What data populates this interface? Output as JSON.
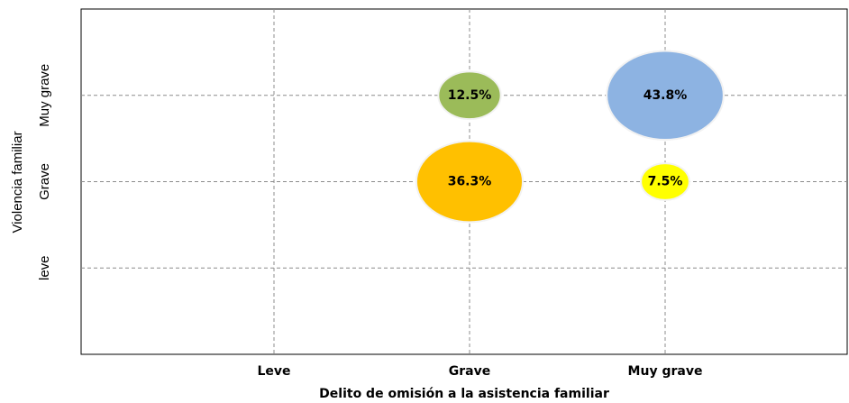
{
  "chart_data": {
    "type": "bubble",
    "x_label": "Delito de omisión a la asistencia familiar",
    "y_label": "Violencia familiar",
    "x_categories": [
      "Leve",
      "Grave",
      "Muy grave"
    ],
    "y_categories": [
      "leve",
      "Grave",
      "Muy grave"
    ],
    "x": [
      "Grave",
      "Muy grave",
      "Grave",
      "Muy grave"
    ],
    "y": [
      "Muy grave",
      "Muy grave",
      "Grave",
      "Grave"
    ],
    "values": [
      12.5,
      43.8,
      36.3,
      7.5
    ],
    "value_labels": [
      "12.5%",
      "43.8%",
      "36.3%",
      "7.5%"
    ],
    "colors": [
      "#9bbb59",
      "#8db3e2",
      "#ffc000",
      "#ffff00"
    ],
    "grid": true
  }
}
